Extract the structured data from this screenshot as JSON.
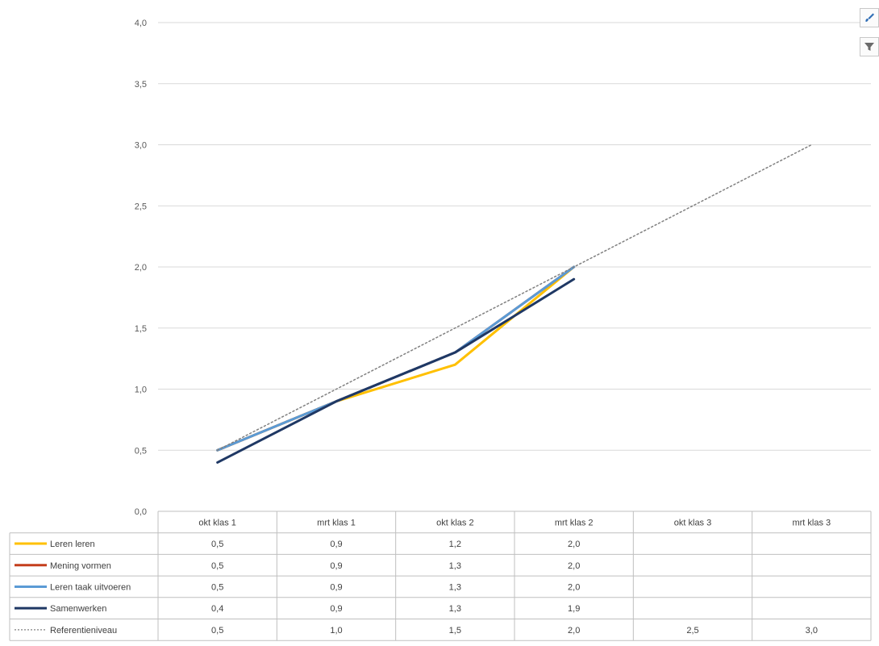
{
  "chart_data": {
    "type": "line",
    "categories": [
      "okt klas 1",
      "mrt klas 1",
      "okt klas 2",
      "mrt klas 2",
      "okt klas 3",
      "mrt klas 3"
    ],
    "ylim": [
      0,
      4
    ],
    "yticks": [
      "0,0",
      "0,5",
      "1,0",
      "1,5",
      "2,0",
      "2,5",
      "3,0",
      "3,5",
      "4,0"
    ],
    "grid": true,
    "legend": "data-table",
    "series": [
      {
        "name": "Leren leren",
        "color": "#FFC000",
        "dash": false,
        "values": [
          0.5,
          0.9,
          1.2,
          2.0,
          null,
          null
        ],
        "labels": [
          "0,5",
          "0,9",
          "1,2",
          "2,0",
          "",
          ""
        ]
      },
      {
        "name": "Mening vormen",
        "color": "#C43E1C",
        "dash": false,
        "values": [
          0.5,
          0.9,
          1.3,
          2.0,
          null,
          null
        ],
        "labels": [
          "0,5",
          "0,9",
          "1,3",
          "2,0",
          "",
          ""
        ]
      },
      {
        "name": "Leren taak uitvoeren",
        "color": "#5B9BD5",
        "dash": false,
        "values": [
          0.5,
          0.9,
          1.3,
          2.0,
          null,
          null
        ],
        "labels": [
          "0,5",
          "0,9",
          "1,3",
          "2,0",
          "",
          ""
        ]
      },
      {
        "name": "Samenwerken",
        "color": "#1F3864",
        "dash": false,
        "values": [
          0.4,
          0.9,
          1.3,
          1.9,
          null,
          null
        ],
        "labels": [
          "0,4",
          "0,9",
          "1,3",
          "1,9",
          "",
          ""
        ]
      },
      {
        "name": "Referentieniveau",
        "color": "#808080",
        "dash": true,
        "values": [
          0.5,
          1.0,
          1.5,
          2.0,
          2.5,
          3.0
        ],
        "labels": [
          "0,5",
          "1,0",
          "1,5",
          "2,0",
          "2,5",
          "3,0"
        ]
      }
    ]
  },
  "toolbar": {
    "style_icon": "brush-icon",
    "filter_icon": "filter-icon"
  }
}
